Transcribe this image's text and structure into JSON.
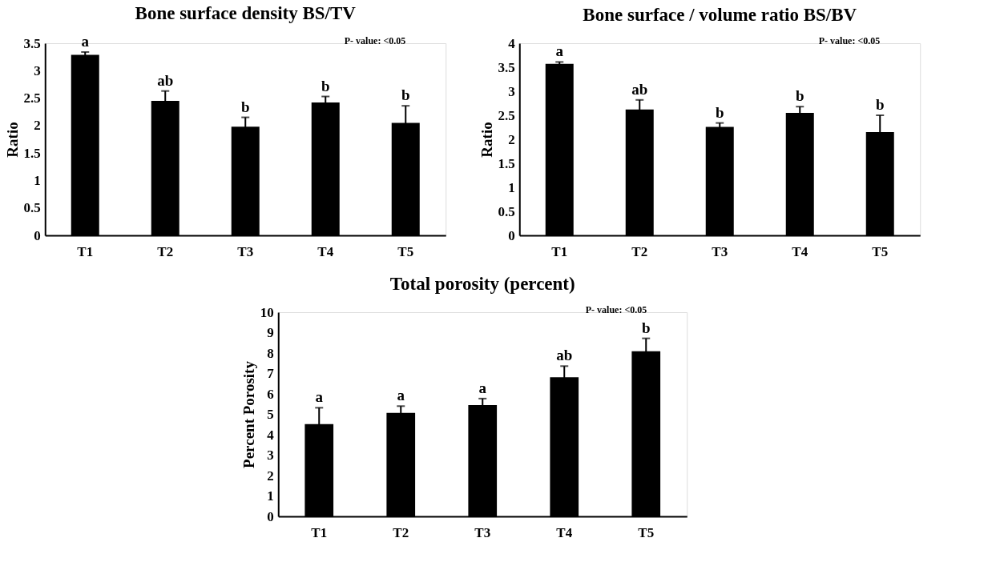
{
  "chart_data": [
    {
      "type": "bar",
      "title": "Bone surface density BS/TV",
      "ylabel": "Ratio",
      "categories": [
        "T1",
        "T2",
        "T3",
        "T4",
        "T5"
      ],
      "values": [
        3.29,
        2.45,
        1.98,
        2.42,
        2.05
      ],
      "errors": [
        0.05,
        0.18,
        0.17,
        0.11,
        0.31
      ],
      "color": "#000000",
      "ylim": [
        0,
        3.5
      ],
      "yticks": [
        0,
        0.5,
        1,
        1.5,
        2,
        2.5,
        3,
        3.5
      ],
      "grid": false,
      "annotations": [
        "P- value: <0.05",
        {
          "text": "a",
          "x": "T1",
          "y": 3.34
        },
        {
          "text": "ab",
          "x": "T2",
          "y": 2.63
        },
        {
          "text": "b",
          "x": "T3",
          "y": 2.15
        },
        {
          "text": "b",
          "x": "T4",
          "y": 2.53
        },
        {
          "text": "b",
          "x": "T5",
          "y": 2.36
        }
      ]
    },
    {
      "type": "bar",
      "title": "Bone surface / volume ratio BS/BV",
      "ylabel": "Ratio",
      "categories": [
        "T1",
        "T2",
        "T3",
        "T4",
        "T5"
      ],
      "values": [
        3.57,
        2.62,
        2.26,
        2.55,
        2.15
      ],
      "errors": [
        0.04,
        0.2,
        0.08,
        0.13,
        0.35
      ],
      "color": "#000000",
      "ylim": [
        0,
        4
      ],
      "yticks": [
        0,
        0.5,
        1,
        1.5,
        2,
        2.5,
        3,
        3.5,
        4
      ],
      "grid": false,
      "annotations": [
        "P- value: <0.05",
        {
          "text": "a",
          "x": "T1",
          "y": 3.61
        },
        {
          "text": "ab",
          "x": "T2",
          "y": 2.82
        },
        {
          "text": "b",
          "x": "T3",
          "y": 2.34
        },
        {
          "text": "b",
          "x": "T4",
          "y": 2.68
        },
        {
          "text": "b",
          "x": "T5",
          "y": 2.5
        }
      ]
    },
    {
      "type": "bar",
      "title": "Total porosity (percent)",
      "ylabel": "Percent Porosity",
      "categories": [
        "T1",
        "T2",
        "T3",
        "T4",
        "T5"
      ],
      "values": [
        4.52,
        5.07,
        5.45,
        6.81,
        8.09
      ],
      "errors": [
        0.8,
        0.33,
        0.32,
        0.55,
        0.63
      ],
      "color": "#000000",
      "ylim": [
        0,
        10
      ],
      "yticks": [
        0,
        1,
        2,
        3,
        4,
        5,
        6,
        7,
        8,
        9,
        10
      ],
      "grid": false,
      "annotations": [
        "P- value: <0.05",
        {
          "text": "a",
          "x": "T1",
          "y": 5.32
        },
        {
          "text": "a",
          "x": "T2",
          "y": 5.4
        },
        {
          "text": "a",
          "x": "T3",
          "y": 5.77
        },
        {
          "text": "ab",
          "x": "T4",
          "y": 7.36
        },
        {
          "text": "b",
          "x": "T5",
          "y": 8.72
        }
      ]
    }
  ]
}
